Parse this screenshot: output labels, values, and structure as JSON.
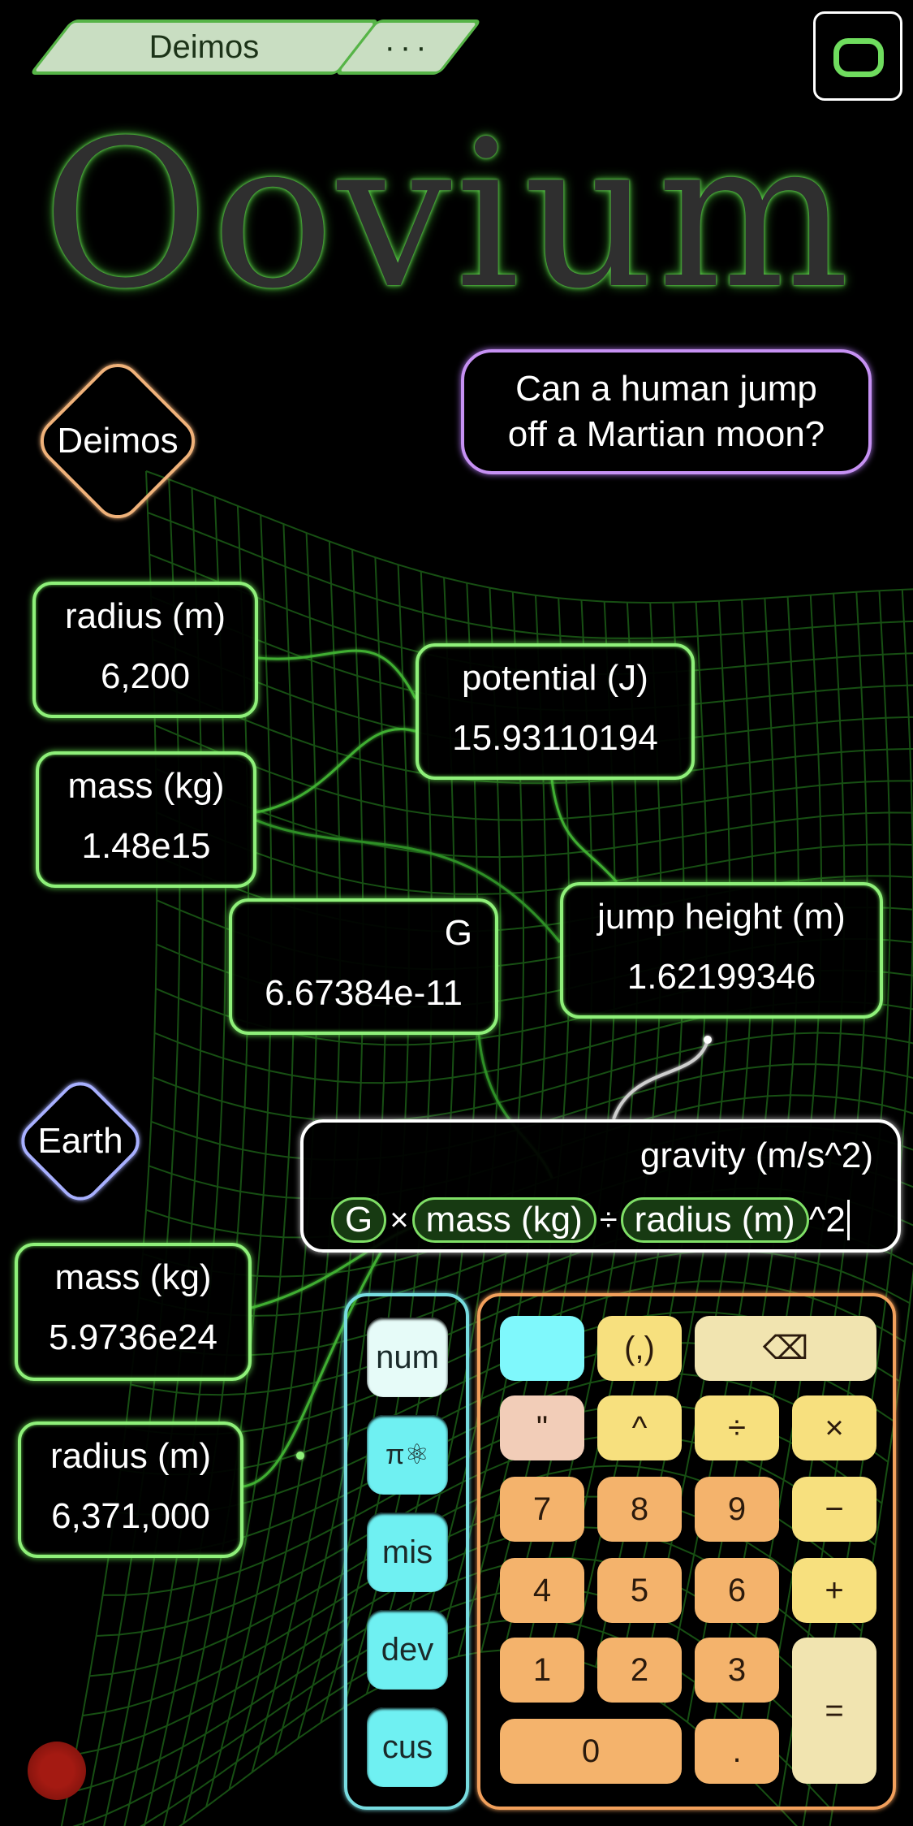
{
  "tabs": {
    "document": "Deimos",
    "more": "···"
  },
  "title": "Oovium",
  "tails": [
    {
      "label": "Deimos"
    },
    {
      "label": "Earth"
    }
  ],
  "question": {
    "line1": "Can a human jump",
    "line2": "off a Martian moon?"
  },
  "objects": {
    "deimos_radius": {
      "name": "radius (m)",
      "value": "6,200"
    },
    "deimos_mass": {
      "name": "mass (kg)",
      "value": "1.48e15"
    },
    "potential": {
      "name": "potential (J)",
      "value": "15.93110194"
    },
    "G": {
      "name": "G",
      "value": "6.67384e-11"
    },
    "jump_height": {
      "name": "jump height (m)",
      "value": "1.62199346"
    },
    "earth_mass": {
      "name": "mass (kg)",
      "value": "5.9736e24"
    },
    "earth_radius": {
      "name": "radius (m)",
      "value": "6,371,000"
    }
  },
  "editor": {
    "name": "gravity (m/s^2)",
    "formula": {
      "t1": "G",
      "op1": "×",
      "t2": "mass (kg)",
      "op2": "÷",
      "t3": "radius (m)",
      "tail": "^2"
    }
  },
  "keysets": [
    "num",
    "π⚛",
    "mis",
    "dev",
    "cus"
  ],
  "keys": {
    "paren": "(,)",
    "backspace": "⌫",
    "quote": "\"",
    "caret": "^",
    "divide": "÷",
    "multiply": "×",
    "k7": "7",
    "k8": "8",
    "k9": "9",
    "minus": "−",
    "k4": "4",
    "k5": "5",
    "k6": "6",
    "plus": "+",
    "k1": "1",
    "k2": "2",
    "k3": "3",
    "equals": "=",
    "k0": "0",
    "dot": "."
  },
  "colors": {
    "object_border": "#8ff07a",
    "question_border": "#c691f3",
    "deimos_tail": "#f0b27a",
    "earth_tail": "#a8b0ff",
    "keyset_border": "#77dce0",
    "calc_border": "#f2a05c"
  }
}
